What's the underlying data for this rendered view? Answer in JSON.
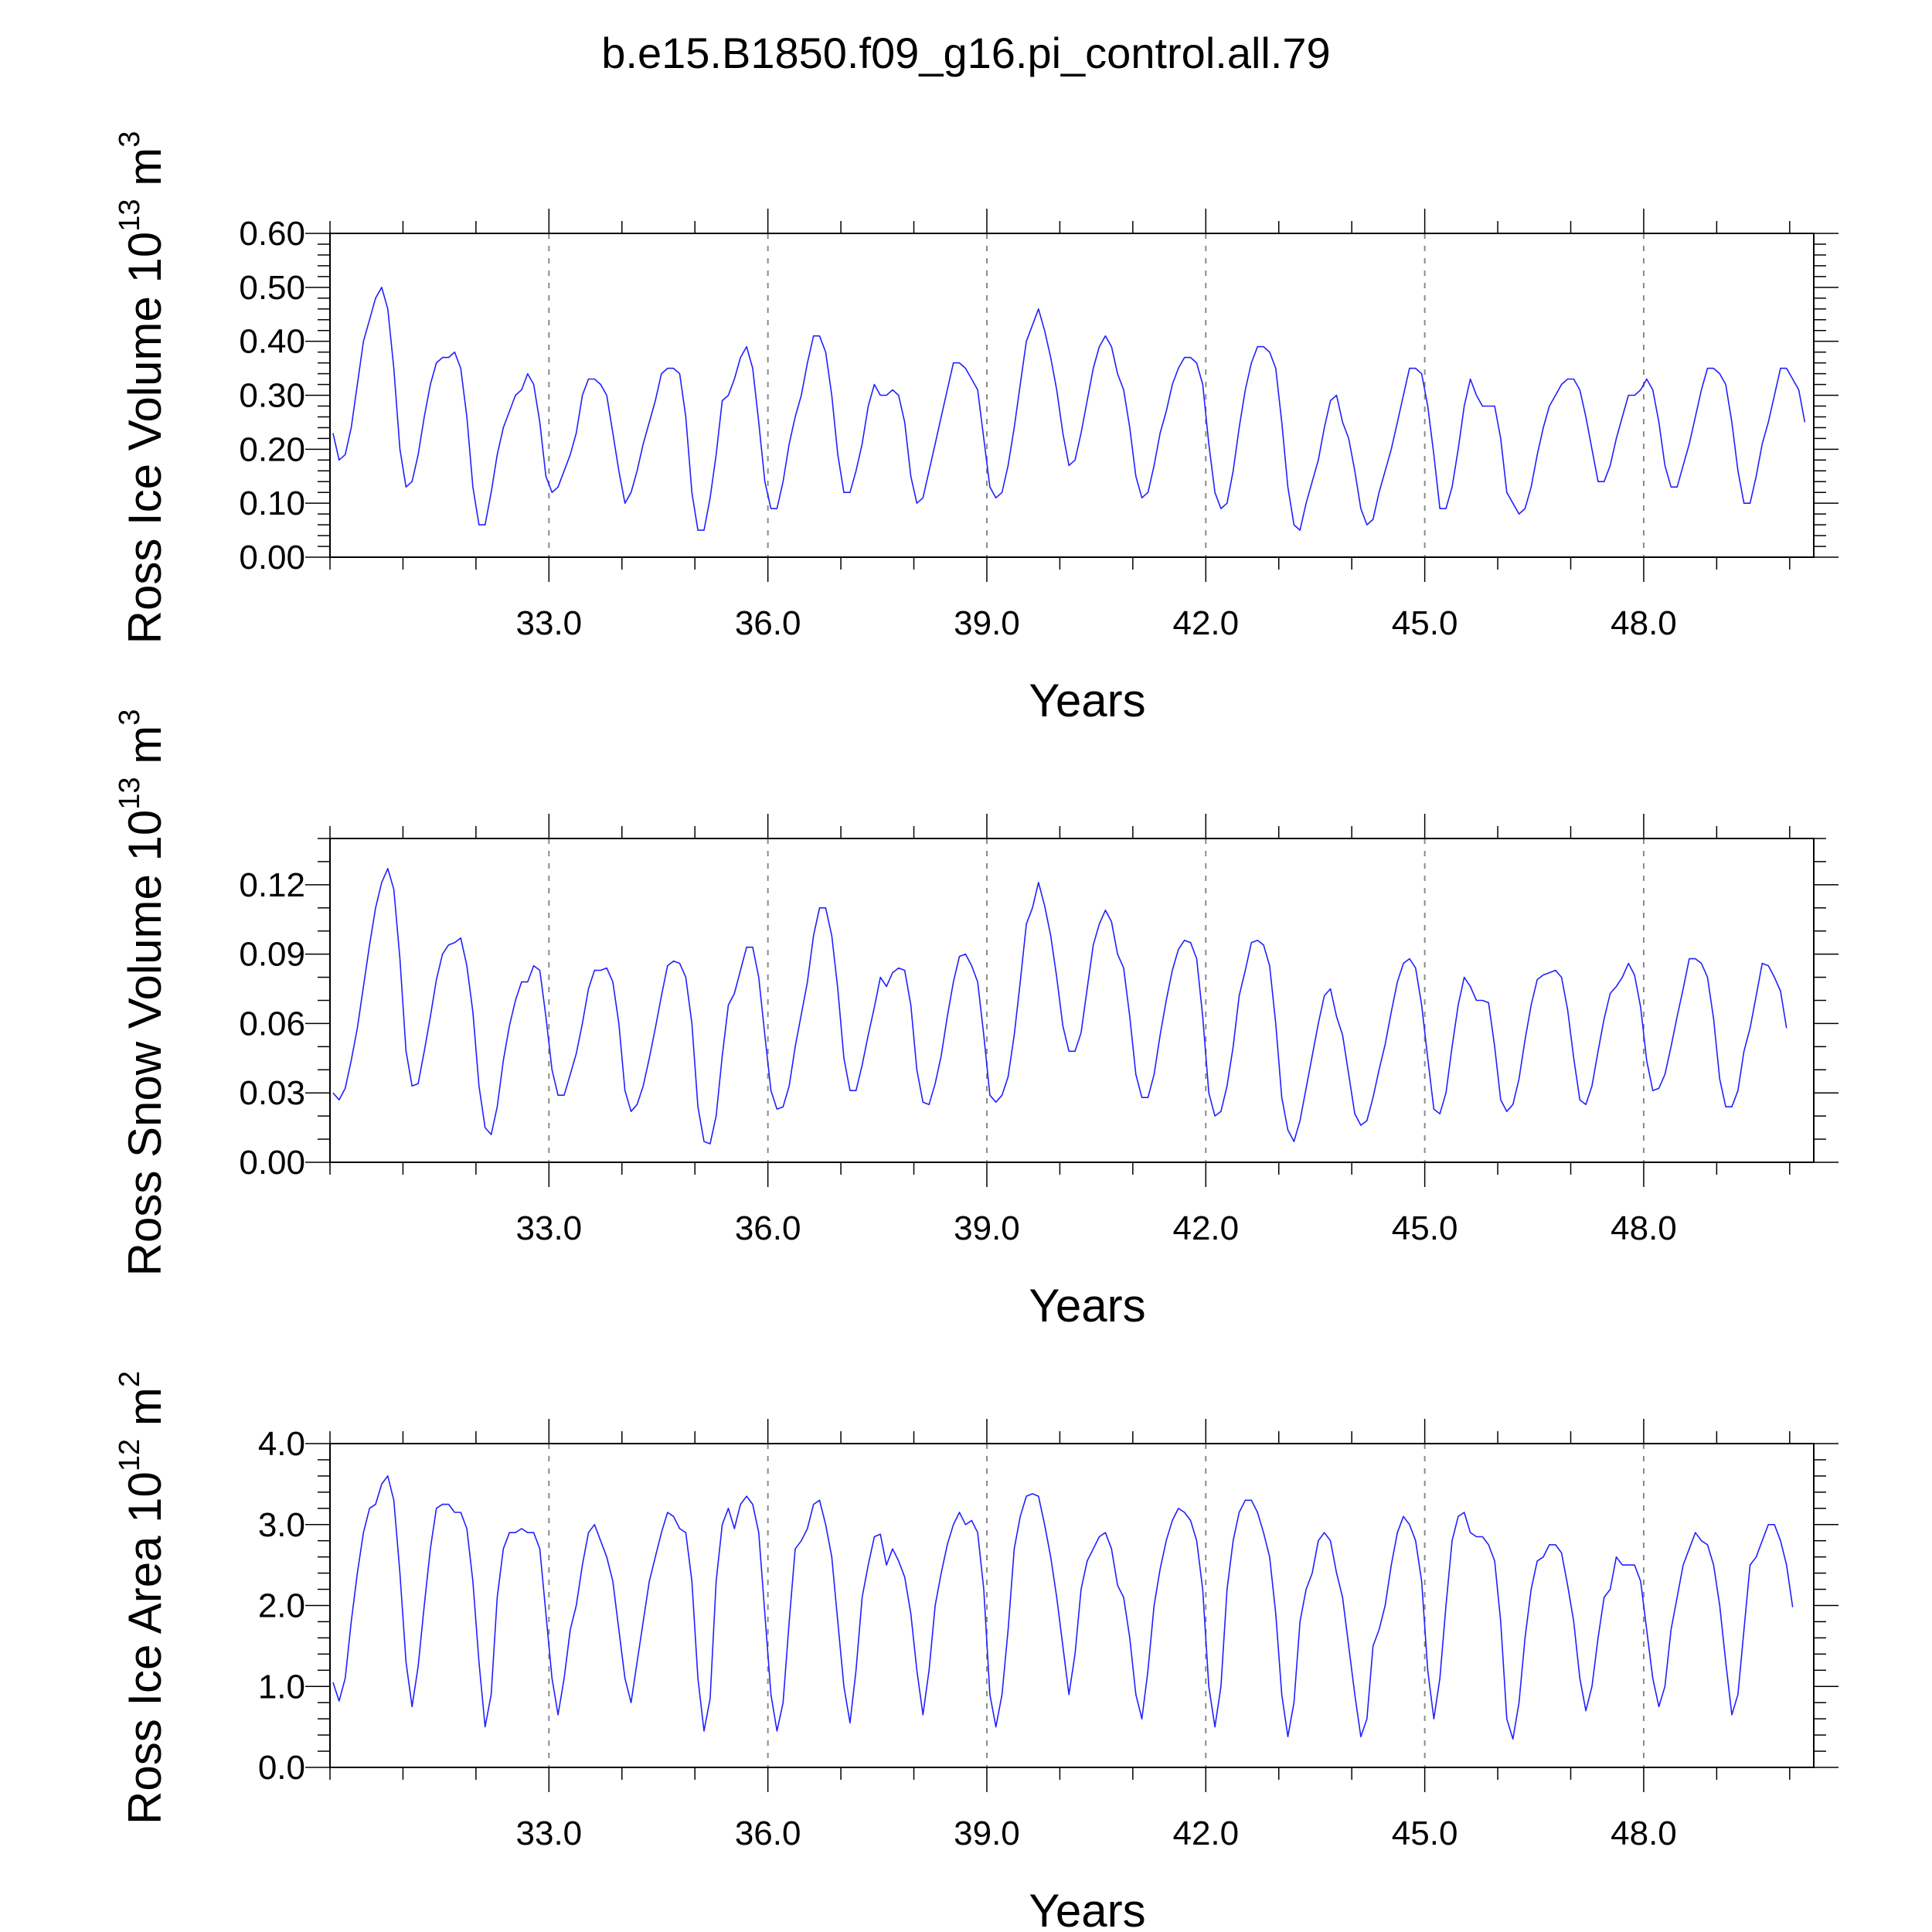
{
  "title": "b.e15.B1850.f09_g16.pi_control.all.79",
  "colors": {
    "series": "#2020ff",
    "grid": "#8a8a8a",
    "axis": "#000000"
  },
  "chart_data": [
    {
      "type": "line",
      "ylabel_text": "Ross Ice Volume 10",
      "ylabel_exp": "13",
      "ylabel_unit": " m",
      "ylabel_unit_exp": "3",
      "xlabel": "Years",
      "xlim": [
        30.0,
        50.33
      ],
      "ylim": [
        0.0,
        0.6
      ],
      "xticks": [
        "33.0",
        "36.0",
        "39.0",
        "42.0",
        "45.0",
        "48.0"
      ],
      "xtick_values": [
        33,
        36,
        39,
        42,
        45,
        48
      ],
      "yticks": [
        "0.00",
        "0.10",
        "0.20",
        "0.30",
        "0.40",
        "0.50",
        "0.60"
      ],
      "ytick_values": [
        0.0,
        0.1,
        0.2,
        0.3,
        0.4,
        0.5,
        0.6
      ],
      "y_minor_step": 0.02,
      "grid": "vertical-dashed",
      "x_start": 30.0417,
      "x_step": 0.08333,
      "series": [
        {
          "values": [
            0.23,
            0.18,
            0.19,
            0.24,
            0.32,
            0.4,
            0.44,
            0.48,
            0.5,
            0.46,
            0.35,
            0.2,
            0.13,
            0.14,
            0.19,
            0.26,
            0.32,
            0.36,
            0.37,
            0.37,
            0.38,
            0.35,
            0.26,
            0.13,
            0.06,
            0.06,
            0.12,
            0.19,
            0.24,
            0.27,
            0.3,
            0.31,
            0.34,
            0.32,
            0.25,
            0.15,
            0.12,
            0.13,
            0.16,
            0.19,
            0.23,
            0.3,
            0.33,
            0.33,
            0.32,
            0.3,
            0.23,
            0.16,
            0.1,
            0.12,
            0.16,
            0.21,
            0.25,
            0.29,
            0.34,
            0.35,
            0.35,
            0.34,
            0.26,
            0.12,
            0.05,
            0.05,
            0.11,
            0.19,
            0.29,
            0.3,
            0.33,
            0.37,
            0.39,
            0.35,
            0.25,
            0.14,
            0.09,
            0.09,
            0.14,
            0.21,
            0.26,
            0.3,
            0.36,
            0.41,
            0.41,
            0.38,
            0.3,
            0.19,
            0.12,
            0.12,
            0.16,
            0.21,
            0.28,
            0.32,
            0.3,
            0.3,
            0.31,
            0.3,
            0.25,
            0.15,
            0.1,
            0.11,
            0.16,
            0.21,
            0.26,
            0.31,
            0.36,
            0.36,
            0.35,
            0.33,
            0.31,
            0.22,
            0.13,
            0.11,
            0.12,
            0.17,
            0.24,
            0.32,
            0.4,
            0.43,
            0.46,
            0.42,
            0.37,
            0.31,
            0.23,
            0.17,
            0.18,
            0.23,
            0.29,
            0.35,
            0.39,
            0.41,
            0.39,
            0.34,
            0.31,
            0.24,
            0.15,
            0.11,
            0.12,
            0.17,
            0.23,
            0.27,
            0.32,
            0.35,
            0.37,
            0.37,
            0.36,
            0.32,
            0.21,
            0.12,
            0.09,
            0.1,
            0.16,
            0.24,
            0.31,
            0.36,
            0.39,
            0.39,
            0.38,
            0.35,
            0.25,
            0.13,
            0.06,
            0.05,
            0.1,
            0.14,
            0.18,
            0.24,
            0.29,
            0.3,
            0.25,
            0.22,
            0.16,
            0.09,
            0.06,
            0.07,
            0.12,
            0.16,
            0.2,
            0.25,
            0.3,
            0.35,
            0.35,
            0.34,
            0.28,
            0.19,
            0.09,
            0.09,
            0.13,
            0.2,
            0.28,
            0.33,
            0.3,
            0.28,
            0.28,
            0.28,
            0.22,
            0.12,
            0.1,
            0.08,
            0.09,
            0.13,
            0.19,
            0.24,
            0.28,
            0.3,
            0.32,
            0.33,
            0.33,
            0.31,
            0.26,
            0.2,
            0.14,
            0.14,
            0.17,
            0.22,
            0.26,
            0.3,
            0.3,
            0.31,
            0.33,
            0.31,
            0.25,
            0.17,
            0.13,
            0.13,
            0.17,
            0.21,
            0.26,
            0.31,
            0.35,
            0.35,
            0.34,
            0.32,
            0.25,
            0.16,
            0.1,
            0.1,
            0.15,
            0.21,
            0.25,
            0.3,
            0.35,
            0.35,
            0.33,
            0.31,
            0.25
          ]
        }
      ]
    },
    {
      "type": "line",
      "ylabel_text": "Ross Snow Volume 10",
      "ylabel_exp": "13",
      "ylabel_unit": " m",
      "ylabel_unit_exp": "3",
      "xlabel": "Years",
      "xlim": [
        30.0,
        50.33
      ],
      "ylim": [
        0.0,
        0.14
      ],
      "xticks": [
        "33.0",
        "36.0",
        "39.0",
        "42.0",
        "45.0",
        "48.0"
      ],
      "xtick_values": [
        33,
        36,
        39,
        42,
        45,
        48
      ],
      "yticks": [
        "0.00",
        "0.03",
        "0.06",
        "0.09",
        "0.12"
      ],
      "ytick_values": [
        0.0,
        0.03,
        0.06,
        0.09,
        0.12
      ],
      "y_minor_step": 0.01,
      "grid": "vertical-dashed",
      "x_start": 30.0417,
      "x_step": 0.08333,
      "series": [
        {
          "values": [
            0.03,
            0.027,
            0.032,
            0.044,
            0.058,
            0.076,
            0.094,
            0.11,
            0.121,
            0.127,
            0.118,
            0.088,
            0.048,
            0.033,
            0.034,
            0.048,
            0.063,
            0.079,
            0.09,
            0.094,
            0.095,
            0.097,
            0.085,
            0.065,
            0.033,
            0.015,
            0.012,
            0.024,
            0.044,
            0.059,
            0.07,
            0.078,
            0.078,
            0.085,
            0.083,
            0.063,
            0.04,
            0.029,
            0.029,
            0.038,
            0.047,
            0.06,
            0.075,
            0.083,
            0.083,
            0.084,
            0.078,
            0.06,
            0.031,
            0.022,
            0.025,
            0.033,
            0.045,
            0.058,
            0.072,
            0.085,
            0.087,
            0.086,
            0.08,
            0.06,
            0.024,
            0.009,
            0.008,
            0.02,
            0.046,
            0.068,
            0.073,
            0.083,
            0.093,
            0.093,
            0.08,
            0.055,
            0.031,
            0.023,
            0.024,
            0.033,
            0.05,
            0.064,
            0.078,
            0.098,
            0.11,
            0.11,
            0.098,
            0.075,
            0.045,
            0.031,
            0.031,
            0.042,
            0.055,
            0.067,
            0.08,
            0.076,
            0.082,
            0.084,
            0.083,
            0.068,
            0.04,
            0.026,
            0.025,
            0.034,
            0.046,
            0.063,
            0.078,
            0.089,
            0.09,
            0.085,
            0.078,
            0.055,
            0.029,
            0.026,
            0.029,
            0.037,
            0.055,
            0.078,
            0.103,
            0.11,
            0.121,
            0.111,
            0.098,
            0.08,
            0.059,
            0.048,
            0.048,
            0.056,
            0.075,
            0.094,
            0.103,
            0.109,
            0.104,
            0.09,
            0.084,
            0.063,
            0.038,
            0.028,
            0.028,
            0.038,
            0.055,
            0.07,
            0.083,
            0.092,
            0.096,
            0.095,
            0.088,
            0.063,
            0.03,
            0.02,
            0.022,
            0.033,
            0.05,
            0.072,
            0.083,
            0.095,
            0.096,
            0.094,
            0.085,
            0.06,
            0.028,
            0.014,
            0.009,
            0.018,
            0.032,
            0.046,
            0.06,
            0.072,
            0.075,
            0.063,
            0.055,
            0.038,
            0.021,
            0.016,
            0.018,
            0.028,
            0.04,
            0.051,
            0.065,
            0.078,
            0.086,
            0.088,
            0.084,
            0.068,
            0.045,
            0.023,
            0.021,
            0.03,
            0.05,
            0.068,
            0.08,
            0.076,
            0.07,
            0.07,
            0.069,
            0.05,
            0.027,
            0.022,
            0.025,
            0.036,
            0.053,
            0.068,
            0.079,
            0.081,
            0.082,
            0.083,
            0.08,
            0.066,
            0.045,
            0.027,
            0.025,
            0.033,
            0.048,
            0.062,
            0.073,
            0.076,
            0.08,
            0.086,
            0.081,
            0.067,
            0.044,
            0.031,
            0.032,
            0.038,
            0.05,
            0.063,
            0.075,
            0.088,
            0.088,
            0.086,
            0.08,
            0.062,
            0.036,
            0.024,
            0.024,
            0.031,
            0.048,
            0.058,
            0.072,
            0.086,
            0.085,
            0.08,
            0.074,
            0.058
          ]
        }
      ]
    },
    {
      "type": "line",
      "ylabel_text": "Ross Ice Area 10",
      "ylabel_exp": "12",
      "ylabel_unit": " m",
      "ylabel_unit_exp": "2",
      "xlabel": "Years",
      "xlim": [
        30.0,
        50.33
      ],
      "ylim": [
        0.0,
        4.0
      ],
      "xticks": [
        "33.0",
        "36.0",
        "39.0",
        "42.0",
        "45.0",
        "48.0"
      ],
      "xtick_values": [
        33,
        36,
        39,
        42,
        45,
        48
      ],
      "yticks": [
        "0.0",
        "1.0",
        "2.0",
        "3.0",
        "4.0"
      ],
      "ytick_values": [
        0.0,
        1.0,
        2.0,
        3.0,
        4.0
      ],
      "y_minor_step": 0.2,
      "grid": "vertical-dashed",
      "x_start": 30.0417,
      "x_step": 0.08333,
      "series": [
        {
          "values": [
            1.05,
            0.82,
            1.1,
            1.8,
            2.4,
            2.9,
            3.2,
            3.25,
            3.5,
            3.6,
            3.3,
            2.4,
            1.3,
            0.75,
            1.25,
            2.0,
            2.7,
            3.2,
            3.25,
            3.25,
            3.15,
            3.15,
            2.95,
            2.3,
            1.3,
            0.5,
            0.9,
            2.1,
            2.7,
            2.9,
            2.9,
            2.95,
            2.9,
            2.9,
            2.7,
            1.9,
            1.1,
            0.65,
            1.1,
            1.7,
            2.0,
            2.5,
            2.9,
            3.0,
            2.8,
            2.6,
            2.3,
            1.7,
            1.1,
            0.8,
            1.3,
            1.8,
            2.3,
            2.6,
            2.9,
            3.15,
            3.1,
            2.95,
            2.9,
            2.3,
            1.1,
            0.45,
            0.85,
            2.3,
            3.0,
            3.2,
            2.95,
            3.25,
            3.35,
            3.25,
            2.9,
            1.9,
            0.9,
            0.45,
            0.8,
            1.8,
            2.7,
            2.8,
            2.95,
            3.25,
            3.3,
            3.0,
            2.6,
            1.8,
            1.0,
            0.55,
            1.2,
            2.1,
            2.5,
            2.85,
            2.88,
            2.5,
            2.7,
            2.55,
            2.35,
            1.9,
            1.2,
            0.65,
            1.2,
            2.0,
            2.4,
            2.75,
            3.0,
            3.15,
            3.0,
            3.05,
            2.9,
            2.2,
            0.9,
            0.5,
            0.9,
            1.7,
            2.7,
            3.1,
            3.35,
            3.38,
            3.35,
            3.0,
            2.6,
            2.1,
            1.5,
            0.9,
            1.4,
            2.2,
            2.55,
            2.7,
            2.85,
            2.9,
            2.7,
            2.25,
            2.1,
            1.6,
            0.9,
            0.6,
            1.2,
            2.0,
            2.45,
            2.8,
            3.05,
            3.2,
            3.15,
            3.05,
            2.8,
            2.2,
            1.0,
            0.5,
            1.0,
            2.2,
            2.8,
            3.15,
            3.3,
            3.3,
            3.15,
            2.9,
            2.6,
            1.9,
            0.9,
            0.38,
            0.8,
            1.8,
            2.2,
            2.4,
            2.8,
            2.9,
            2.8,
            2.4,
            2.1,
            1.5,
            0.9,
            0.38,
            0.6,
            1.5,
            1.7,
            2.0,
            2.5,
            2.9,
            3.1,
            3.0,
            2.8,
            2.3,
            1.2,
            0.6,
            1.1,
            2.0,
            2.8,
            3.1,
            3.15,
            2.9,
            2.85,
            2.85,
            2.75,
            2.55,
            1.8,
            0.6,
            0.35,
            0.8,
            1.6,
            2.2,
            2.55,
            2.6,
            2.75,
            2.75,
            2.65,
            2.25,
            1.8,
            1.1,
            0.7,
            1.0,
            1.6,
            2.1,
            2.2,
            2.6,
            2.5,
            2.5,
            2.5,
            2.3,
            1.7,
            1.1,
            0.75,
            1.0,
            1.7,
            2.1,
            2.5,
            2.7,
            2.9,
            2.8,
            2.75,
            2.5,
            2.0,
            1.3,
            0.65,
            0.9,
            1.7,
            2.5,
            2.6,
            2.8,
            3.0,
            3.0,
            2.8,
            2.5,
            1.98
          ]
        }
      ]
    }
  ]
}
